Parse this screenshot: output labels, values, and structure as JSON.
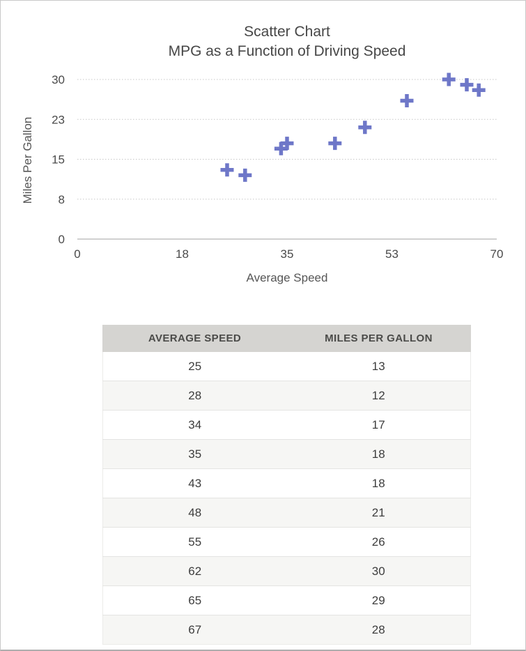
{
  "chart_data": {
    "type": "scatter",
    "title": "Scatter Chart",
    "subtitle": "MPG as a Function of Driving Speed",
    "xlabel": "Average Speed",
    "ylabel": "Miles Per Gallon",
    "xlim": [
      0,
      70
    ],
    "ylim": [
      0,
      30
    ],
    "x_tick_labels": [
      "0",
      "18",
      "35",
      "53",
      "70"
    ],
    "y_tick_labels": [
      "0",
      "8",
      "15",
      "23",
      "30"
    ],
    "grid": "horizontal-dotted",
    "legend": "none",
    "marker": "plus",
    "marker_color": "#6e77c8",
    "points": [
      [
        25,
        13
      ],
      [
        28,
        12
      ],
      [
        34,
        17
      ],
      [
        35,
        18
      ],
      [
        43,
        18
      ],
      [
        48,
        21
      ],
      [
        55,
        26
      ],
      [
        62,
        30
      ],
      [
        65,
        29
      ],
      [
        67,
        28
      ]
    ]
  },
  "table": {
    "headers": [
      "AVERAGE SPEED",
      "MILES PER GALLON"
    ],
    "rows": [
      [
        "25",
        "13"
      ],
      [
        "28",
        "12"
      ],
      [
        "34",
        "17"
      ],
      [
        "35",
        "18"
      ],
      [
        "43",
        "18"
      ],
      [
        "48",
        "21"
      ],
      [
        "55",
        "26"
      ],
      [
        "62",
        "30"
      ],
      [
        "65",
        "29"
      ],
      [
        "67",
        "28"
      ]
    ]
  },
  "colors": {
    "marker": "#6e77c8",
    "gridline": "#c7c7c7",
    "axis_line": "#c0c0c0",
    "tick_text": "#4a4a4a",
    "title_text": "#474747",
    "table_header_bg": "#d5d4d1",
    "row_alt_bg": "#f6f6f4"
  }
}
